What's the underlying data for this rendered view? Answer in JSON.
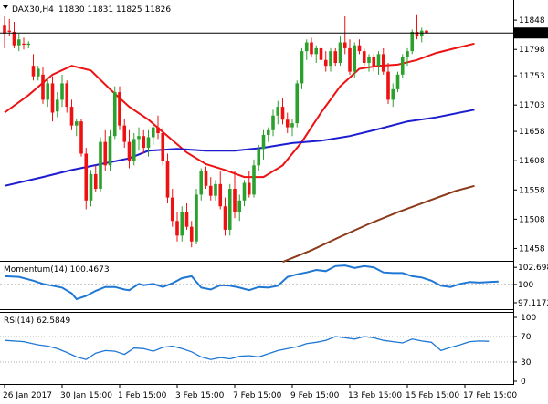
{
  "header": {
    "symbol": "DAX30,H4",
    "ohlc": "11830 11831 11825 11826",
    "indicator_arrow": "triangle-down-icon"
  },
  "chart_data": [
    {
      "type": "candlestick",
      "panel": "price",
      "ylim": [
        11440,
        11870
      ],
      "yticks": [
        11848,
        11798,
        11753,
        11703,
        11658,
        11608,
        11558,
        11508,
        11458
      ],
      "current_price": 11826,
      "current_price_label": "11826",
      "x_labels": [
        "26 Jan 2017",
        "30 Jan 15:00",
        "1 Feb 15:00",
        "3 Feb 15:00",
        "7 Feb 15:00",
        "9 Feb 15:00",
        "13 Feb 15:00",
        "15 Feb 15:00",
        "17 Feb 15:00"
      ],
      "x_label_bars": [
        0,
        12,
        24,
        36,
        48,
        60,
        72,
        84,
        96
      ],
      "colors": {
        "up": "#2ca02c",
        "down": "#ee1111"
      },
      "candles": [
        [
          11840,
          11855,
          11800,
          11825
        ],
        [
          11830,
          11850,
          11820,
          11828
        ],
        [
          11828,
          11845,
          11800,
          11805
        ],
        [
          11805,
          11825,
          11795,
          11815
        ],
        [
          11808,
          11818,
          11798,
          11806
        ],
        [
          11806,
          11812,
          11800,
          11808
        ],
        [
          11770,
          11790,
          11745,
          11752
        ],
        [
          11752,
          11770,
          11745,
          11765
        ],
        [
          11755,
          11768,
          11705,
          11712
        ],
        [
          11712,
          11750,
          11700,
          11740
        ],
        [
          11740,
          11752,
          11675,
          11690
        ],
        [
          11692,
          11725,
          11682,
          11712
        ],
        [
          11712,
          11755,
          11700,
          11740
        ],
        [
          11740,
          11745,
          11690,
          11700
        ],
        [
          11700,
          11712,
          11660,
          11668
        ],
        [
          11668,
          11680,
          11650,
          11675
        ],
        [
          11675,
          11680,
          11615,
          11620
        ],
        [
          11620,
          11630,
          11525,
          11540
        ],
        [
          11540,
          11592,
          11530,
          11585
        ],
        [
          11585,
          11600,
          11555,
          11560
        ],
        [
          11560,
          11648,
          11555,
          11640
        ],
        [
          11640,
          11660,
          11590,
          11600
        ],
        [
          11600,
          11660,
          11590,
          11650
        ],
        [
          11650,
          11735,
          11645,
          11725
        ],
        [
          11725,
          11735,
          11660,
          11668
        ],
        [
          11668,
          11680,
          11630,
          11640
        ],
        [
          11640,
          11660,
          11595,
          11608
        ],
        [
          11608,
          11655,
          11600,
          11645
        ],
        [
          11645,
          11665,
          11625,
          11650
        ],
        [
          11650,
          11660,
          11620,
          11630
        ],
        [
          11630,
          11660,
          11615,
          11648
        ],
        [
          11648,
          11672,
          11635,
          11665
        ],
        [
          11665,
          11685,
          11645,
          11655
        ],
        [
          11655,
          11665,
          11600,
          11608
        ],
        [
          11608,
          11620,
          11535,
          11545
        ],
        [
          11545,
          11560,
          11495,
          11505
        ],
        [
          11505,
          11520,
          11470,
          11480
        ],
        [
          11480,
          11530,
          11470,
          11520
        ],
        [
          11520,
          11535,
          11490,
          11495
        ],
        [
          11495,
          11505,
          11460,
          11470
        ],
        [
          11470,
          11560,
          11465,
          11550
        ],
        [
          11550,
          11595,
          11540,
          11590
        ],
        [
          11590,
          11598,
          11560,
          11565
        ],
        [
          11565,
          11580,
          11540,
          11548
        ],
        [
          11548,
          11575,
          11540,
          11568
        ],
        [
          11568,
          11590,
          11525,
          11530
        ],
        [
          11530,
          11545,
          11480,
          11490
        ],
        [
          11490,
          11568,
          11480,
          11560
        ],
        [
          11560,
          11590,
          11510,
          11520
        ],
        [
          11520,
          11550,
          11505,
          11540
        ],
        [
          11540,
          11575,
          11530,
          11570
        ],
        [
          11570,
          11590,
          11545,
          11550
        ],
        [
          11550,
          11610,
          11545,
          11600
        ],
        [
          11600,
          11635,
          11590,
          11628
        ],
        [
          11628,
          11660,
          11610,
          11652
        ],
        [
          11652,
          11665,
          11640,
          11660
        ],
        [
          11660,
          11695,
          11650,
          11685
        ],
        [
          11685,
          11710,
          11670,
          11700
        ],
        [
          11700,
          11715,
          11670,
          11678
        ],
        [
          11678,
          11690,
          11655,
          11665
        ],
        [
          11665,
          11680,
          11650,
          11672
        ],
        [
          11672,
          11745,
          11665,
          11740
        ],
        [
          11740,
          11800,
          11730,
          11795
        ],
        [
          11795,
          11815,
          11780,
          11810
        ],
        [
          11810,
          11818,
          11785,
          11790
        ],
        [
          11790,
          11805,
          11775,
          11800
        ],
        [
          11800,
          11808,
          11775,
          11780
        ],
        [
          11780,
          11795,
          11760,
          11770
        ],
        [
          11770,
          11800,
          11760,
          11795
        ],
        [
          11795,
          11800,
          11770,
          11775
        ],
        [
          11775,
          11820,
          11770,
          11810
        ],
        [
          11810,
          11855,
          11790,
          11800
        ],
        [
          11800,
          11815,
          11755,
          11760
        ],
        [
          11760,
          11810,
          11750,
          11805
        ],
        [
          11805,
          11815,
          11790,
          11795
        ],
        [
          11795,
          11800,
          11770,
          11775
        ],
        [
          11775,
          11790,
          11760,
          11785
        ],
        [
          11785,
          11790,
          11760,
          11770
        ],
        [
          11770,
          11795,
          11755,
          11790
        ],
        [
          11790,
          11800,
          11755,
          11760
        ],
        [
          11760,
          11775,
          11705,
          11712
        ],
        [
          11712,
          11740,
          11700,
          11730
        ],
        [
          11730,
          11760,
          11725,
          11755
        ],
        [
          11755,
          11790,
          11750,
          11785
        ],
        [
          11785,
          11800,
          11770,
          11795
        ],
        [
          11795,
          11832,
          11790,
          11828
        ],
        [
          11828,
          11858,
          11815,
          11820
        ],
        [
          11820,
          11835,
          11810,
          11830
        ],
        [
          11830,
          11831,
          11825,
          11826
        ]
      ],
      "moving_averages": [
        {
          "color": "#ee1111",
          "values": [
            [
              0,
              11690
            ],
            [
              5,
              11720
            ],
            [
              10,
              11755
            ],
            [
              14,
              11770
            ],
            [
              18,
              11762
            ],
            [
              22,
              11730
            ],
            [
              26,
              11700
            ],
            [
              30,
              11678
            ],
            [
              34,
              11650
            ],
            [
              38,
              11622
            ],
            [
              42,
              11602
            ],
            [
              46,
              11592
            ],
            [
              50,
              11580
            ],
            [
              54,
              11580
            ],
            [
              58,
              11600
            ],
            [
              62,
              11640
            ],
            [
              66,
              11690
            ],
            [
              70,
              11735
            ],
            [
              74,
              11765
            ],
            [
              78,
              11770
            ],
            [
              82,
              11772
            ],
            [
              86,
              11780
            ],
            [
              90,
              11792
            ],
            [
              94,
              11800
            ],
            [
              98,
              11808
            ]
          ]
        },
        {
          "color": "#1c1cd0",
          "values": [
            [
              0,
              11565
            ],
            [
              8,
              11580
            ],
            [
              14,
              11592
            ],
            [
              20,
              11602
            ],
            [
              26,
              11612
            ],
            [
              30,
              11625
            ],
            [
              36,
              11628
            ],
            [
              42,
              11625
            ],
            [
              48,
              11625
            ],
            [
              54,
              11630
            ],
            [
              60,
              11638
            ],
            [
              66,
              11642
            ],
            [
              72,
              11650
            ],
            [
              78,
              11662
            ],
            [
              84,
              11675
            ],
            [
              90,
              11682
            ],
            [
              98,
              11695
            ]
          ]
        },
        {
          "color": "#8b3a1a",
          "values": [
            [
              58,
              11435
            ],
            [
              64,
              11455
            ],
            [
              70,
              11478
            ],
            [
              76,
              11500
            ],
            [
              82,
              11520
            ],
            [
              88,
              11538
            ],
            [
              94,
              11556
            ],
            [
              98,
              11565
            ]
          ]
        }
      ]
    },
    {
      "type": "line",
      "panel": "momentum",
      "title": "Momentum(14) 100.4673",
      "ylim": [
        96.4,
        103.3
      ],
      "yticks": [
        102.6987,
        100,
        97.1172
      ],
      "reference": 100,
      "color": "#1f77d4",
      "values": [
        [
          0,
          101.3
        ],
        [
          3,
          101.2
        ],
        [
          6,
          100.6
        ],
        [
          8,
          100.1
        ],
        [
          10,
          99.8
        ],
        [
          12,
          99.5
        ],
        [
          14,
          98.6
        ],
        [
          15,
          97.7
        ],
        [
          17,
          98.2
        ],
        [
          19,
          99.0
        ],
        [
          21,
          99.6
        ],
        [
          23,
          99.6
        ],
        [
          25,
          99.2
        ],
        [
          26,
          99.1
        ],
        [
          28,
          100.1
        ],
        [
          29,
          99.9
        ],
        [
          31,
          100.1
        ],
        [
          33,
          99.6
        ],
        [
          35,
          100.2
        ],
        [
          37,
          101.0
        ],
        [
          39,
          101.3
        ],
        [
          41,
          99.5
        ],
        [
          43,
          99.2
        ],
        [
          45,
          99.9
        ],
        [
          47,
          99.8
        ],
        [
          49,
          99.5
        ],
        [
          51,
          99.1
        ],
        [
          53,
          99.6
        ],
        [
          55,
          99.5
        ],
        [
          57,
          99.8
        ],
        [
          59,
          101.2
        ],
        [
          61,
          101.6
        ],
        [
          63,
          101.9
        ],
        [
          65,
          102.3
        ],
        [
          67,
          102.1
        ],
        [
          69,
          102.9
        ],
        [
          71,
          103.0
        ],
        [
          73,
          102.6
        ],
        [
          75,
          102.9
        ],
        [
          77,
          102.7
        ],
        [
          79,
          101.9
        ],
        [
          81,
          101.8
        ],
        [
          83,
          101.8
        ],
        [
          85,
          101.3
        ],
        [
          87,
          101.1
        ],
        [
          89,
          100.6
        ],
        [
          91,
          99.8
        ],
        [
          93,
          99.6
        ],
        [
          95,
          100.1
        ],
        [
          97,
          100.4
        ],
        [
          99,
          100.3
        ],
        [
          101,
          100.4
        ],
        [
          103,
          100.45
        ]
      ]
    },
    {
      "type": "line",
      "panel": "rsi",
      "title": "RSI(14) 62.5849",
      "ylim": [
        0,
        100
      ],
      "yticks": [
        100,
        70,
        30,
        0
      ],
      "dotted_levels": [
        70,
        30
      ],
      "color": "#1f77d4",
      "values": [
        [
          0,
          64
        ],
        [
          4,
          62
        ],
        [
          7,
          57
        ],
        [
          9,
          55
        ],
        [
          11,
          51
        ],
        [
          13,
          45
        ],
        [
          15,
          38
        ],
        [
          17,
          34
        ],
        [
          19,
          44
        ],
        [
          21,
          48
        ],
        [
          23,
          47
        ],
        [
          25,
          42
        ],
        [
          27,
          52
        ],
        [
          29,
          51
        ],
        [
          31,
          47
        ],
        [
          33,
          53
        ],
        [
          35,
          55
        ],
        [
          37,
          51
        ],
        [
          39,
          46
        ],
        [
          41,
          38
        ],
        [
          43,
          34
        ],
        [
          45,
          37
        ],
        [
          47,
          35
        ],
        [
          49,
          39
        ],
        [
          51,
          40
        ],
        [
          53,
          38
        ],
        [
          55,
          43
        ],
        [
          57,
          48
        ],
        [
          59,
          51
        ],
        [
          61,
          54
        ],
        [
          63,
          59
        ],
        [
          65,
          61
        ],
        [
          67,
          64
        ],
        [
          69,
          70
        ],
        [
          71,
          68
        ],
        [
          73,
          66
        ],
        [
          75,
          70
        ],
        [
          77,
          68
        ],
        [
          79,
          64
        ],
        [
          81,
          62
        ],
        [
          83,
          60
        ],
        [
          85,
          66
        ],
        [
          87,
          63
        ],
        [
          89,
          61
        ],
        [
          91,
          48
        ],
        [
          93,
          53
        ],
        [
          95,
          57
        ],
        [
          97,
          62
        ],
        [
          99,
          63
        ],
        [
          101,
          62.6
        ]
      ]
    }
  ]
}
